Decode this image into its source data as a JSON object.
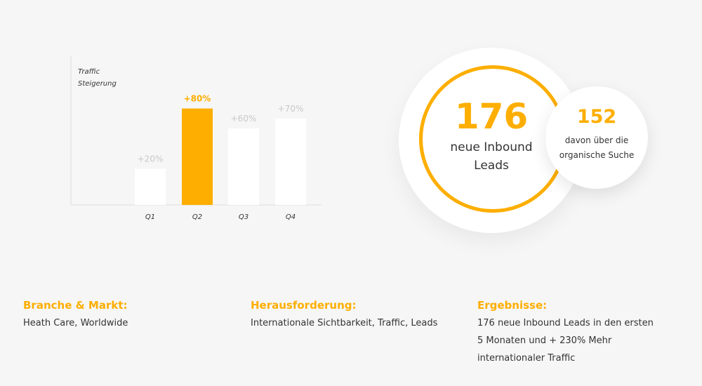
{
  "chart_data": {
    "type": "bar",
    "ylabel": [
      "Traffic",
      "Steigerung"
    ],
    "categories": [
      "Q1",
      "Q2",
      "Q3",
      "Q4"
    ],
    "values": [
      20,
      80,
      60,
      70
    ],
    "data_labels": [
      "+20%",
      "+80%",
      "+60%",
      "+70%"
    ],
    "highlight_index": 1,
    "colors": {
      "default": "#ffffff",
      "highlight": "#fdae00",
      "label": "#c8c8c8"
    },
    "grid": false
  },
  "stats": {
    "main_number": "176",
    "main_label_1": "neue Inbound",
    "main_label_2": "Leads",
    "sub_number": "152",
    "sub_label_1": "davon über die",
    "sub_label_2": "organische Suche"
  },
  "info": [
    {
      "title": "Branche & Markt:",
      "lines": [
        "Heath Care, Worldwide"
      ]
    },
    {
      "title": "Herausforderung:",
      "lines": [
        "Internationale Sichtbarkeit, Traffic, Leads"
      ]
    },
    {
      "title": "Ergebnisse:",
      "lines": [
        "176 neue Inbound Leads in den ersten",
        "5 Monaten und + 230% Mehr",
        "internationaler Traffic"
      ]
    }
  ],
  "accent": "#fdae00"
}
